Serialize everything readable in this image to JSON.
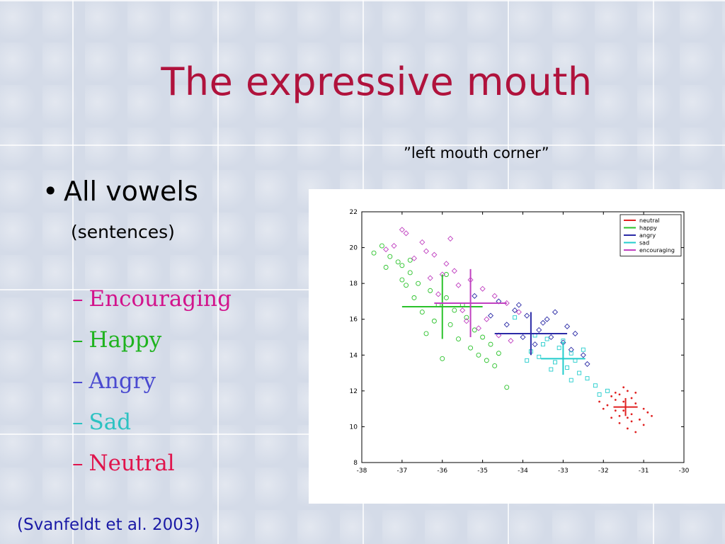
{
  "slide": {
    "title": "The expressive mouth",
    "bullet": "All vowels",
    "bullet_sub": "(sentences)",
    "plot_caption": "”left mouth corner”",
    "citation": "(Svanfeldt et al. 2003)",
    "dash": "–",
    "bullet_marker": "•",
    "emotions": [
      {
        "label": "Encouraging",
        "color": "#d2138c"
      },
      {
        "label": "Happy",
        "color": "#1fb31f"
      },
      {
        "label": "Angry",
        "color": "#4a4ad0"
      },
      {
        "label": "Sad",
        "color": "#2cc2c2"
      },
      {
        "label": "Neutral",
        "color": "#e0144c"
      }
    ]
  },
  "chart_data": {
    "type": "scatter",
    "xlim": [
      -38,
      -30
    ],
    "ylim": [
      8,
      22
    ],
    "xticks": [
      "-38",
      "-37",
      "-36",
      "-35",
      "-34",
      "-33",
      "-32",
      "-31",
      "-30"
    ],
    "yticks": [
      "8",
      "10",
      "12",
      "14",
      "16",
      "18",
      "20",
      "22"
    ],
    "legend_position": "top-right",
    "series": [
      {
        "name": "neutral",
        "color": "#e02020",
        "marker": "dot",
        "mean": [
          -31.45,
          11.1
        ],
        "sd": [
          0.3,
          0.5
        ],
        "points": [
          [
            -31.6,
            11.8
          ],
          [
            -31.4,
            12.0
          ],
          [
            -31.7,
            11.5
          ],
          [
            -31.2,
            11.3
          ],
          [
            -31.5,
            10.9
          ],
          [
            -31.8,
            10.5
          ],
          [
            -31.3,
            10.7
          ],
          [
            -31.0,
            11.0
          ],
          [
            -31.6,
            10.2
          ],
          [
            -31.1,
            10.4
          ],
          [
            -31.9,
            11.2
          ],
          [
            -31.4,
            9.9
          ],
          [
            -30.9,
            10.8
          ],
          [
            -31.2,
            9.7
          ],
          [
            -31.7,
            11.9
          ],
          [
            -31.5,
            11.4
          ],
          [
            -31.3,
            11.6
          ],
          [
            -32.0,
            11.0
          ],
          [
            -31.0,
            10.1
          ],
          [
            -30.8,
            10.6
          ],
          [
            -31.6,
            10.6
          ],
          [
            -31.4,
            10.5
          ],
          [
            -31.8,
            11.7
          ],
          [
            -31.2,
            11.9
          ],
          [
            -31.5,
            12.2
          ],
          [
            -32.1,
            11.4
          ],
          [
            -31.3,
            10.3
          ],
          [
            -31.7,
            10.9
          ]
        ]
      },
      {
        "name": "happy",
        "color": "#2ac22a",
        "marker": "circle",
        "mean": [
          -36.0,
          16.7
        ],
        "sd": [
          1.0,
          1.8
        ],
        "points": [
          [
            -37.7,
            19.7
          ],
          [
            -37.3,
            19.5
          ],
          [
            -37.0,
            19.0
          ],
          [
            -36.8,
            18.6
          ],
          [
            -37.4,
            18.9
          ],
          [
            -36.6,
            18.0
          ],
          [
            -36.3,
            17.6
          ],
          [
            -36.9,
            17.9
          ],
          [
            -35.9,
            17.2
          ],
          [
            -36.1,
            16.8
          ],
          [
            -35.7,
            16.5
          ],
          [
            -35.4,
            16.1
          ],
          [
            -35.8,
            15.7
          ],
          [
            -35.2,
            15.4
          ],
          [
            -35.0,
            15.0
          ],
          [
            -34.8,
            14.6
          ],
          [
            -34.6,
            14.1
          ],
          [
            -35.3,
            14.4
          ],
          [
            -36.2,
            15.9
          ],
          [
            -36.5,
            16.4
          ],
          [
            -37.1,
            19.2
          ],
          [
            -37.5,
            20.1
          ],
          [
            -36.7,
            17.2
          ],
          [
            -35.6,
            14.9
          ],
          [
            -34.9,
            13.7
          ],
          [
            -36.0,
            13.8
          ],
          [
            -35.1,
            14.0
          ],
          [
            -37.0,
            18.2
          ],
          [
            -35.5,
            16.8
          ],
          [
            -36.4,
            15.2
          ],
          [
            -34.4,
            12.2
          ],
          [
            -35.9,
            18.5
          ],
          [
            -36.8,
            19.3
          ],
          [
            -34.7,
            13.4
          ]
        ]
      },
      {
        "name": "angry",
        "color": "#2a2aa6",
        "marker": "diamond",
        "mean": [
          -33.8,
          15.2
        ],
        "sd": [
          0.9,
          1.2
        ],
        "points": [
          [
            -34.6,
            17.0
          ],
          [
            -34.2,
            16.5
          ],
          [
            -33.9,
            16.2
          ],
          [
            -34.4,
            15.7
          ],
          [
            -33.6,
            15.4
          ],
          [
            -33.3,
            15.0
          ],
          [
            -33.0,
            14.7
          ],
          [
            -32.8,
            14.3
          ],
          [
            -33.4,
            16.0
          ],
          [
            -34.0,
            15.0
          ],
          [
            -32.7,
            15.2
          ],
          [
            -32.5,
            14.0
          ],
          [
            -33.7,
            14.6
          ],
          [
            -34.8,
            16.2
          ],
          [
            -33.2,
            16.4
          ],
          [
            -32.4,
            13.5
          ],
          [
            -35.2,
            17.3
          ],
          [
            -34.1,
            16.8
          ],
          [
            -33.5,
            15.8
          ],
          [
            -32.9,
            15.6
          ]
        ]
      },
      {
        "name": "sad",
        "color": "#22cccc",
        "marker": "square",
        "mean": [
          -33.0,
          13.8
        ],
        "sd": [
          0.55,
          0.9
        ],
        "points": [
          [
            -33.4,
            14.9
          ],
          [
            -33.1,
            14.4
          ],
          [
            -32.8,
            14.1
          ],
          [
            -33.6,
            13.9
          ],
          [
            -33.2,
            13.6
          ],
          [
            -32.9,
            13.3
          ],
          [
            -32.6,
            13.0
          ],
          [
            -33.5,
            14.6
          ],
          [
            -33.8,
            14.2
          ],
          [
            -32.7,
            13.7
          ],
          [
            -33.0,
            14.8
          ],
          [
            -32.4,
            12.7
          ],
          [
            -32.2,
            12.3
          ],
          [
            -31.9,
            12.0
          ],
          [
            -33.3,
            13.2
          ],
          [
            -32.5,
            14.3
          ],
          [
            -33.7,
            15.1
          ],
          [
            -32.1,
            11.8
          ],
          [
            -34.2,
            16.1
          ],
          [
            -33.9,
            13.7
          ],
          [
            -32.8,
            12.6
          ]
        ]
      },
      {
        "name": "encouraging",
        "color": "#c040c0",
        "marker": "diamond",
        "mean": [
          -35.3,
          16.9
        ],
        "sd": [
          0.9,
          1.9
        ],
        "points": [
          [
            -37.2,
            20.1
          ],
          [
            -36.9,
            20.8
          ],
          [
            -36.5,
            20.3
          ],
          [
            -36.2,
            19.6
          ],
          [
            -35.9,
            19.1
          ],
          [
            -35.7,
            18.7
          ],
          [
            -35.3,
            18.2
          ],
          [
            -35.0,
            17.7
          ],
          [
            -34.7,
            17.3
          ],
          [
            -34.4,
            16.9
          ],
          [
            -34.1,
            16.4
          ],
          [
            -35.6,
            17.9
          ],
          [
            -36.0,
            18.5
          ],
          [
            -36.7,
            19.4
          ],
          [
            -37.0,
            21.0
          ],
          [
            -36.4,
            19.8
          ],
          [
            -35.5,
            16.5
          ],
          [
            -34.9,
            16.0
          ],
          [
            -35.1,
            15.5
          ],
          [
            -34.6,
            15.1
          ],
          [
            -35.8,
            20.5
          ],
          [
            -36.3,
            18.3
          ],
          [
            -37.4,
            19.9
          ],
          [
            -34.3,
            14.8
          ],
          [
            -36.1,
            17.4
          ],
          [
            -35.4,
            15.9
          ]
        ]
      }
    ]
  }
}
